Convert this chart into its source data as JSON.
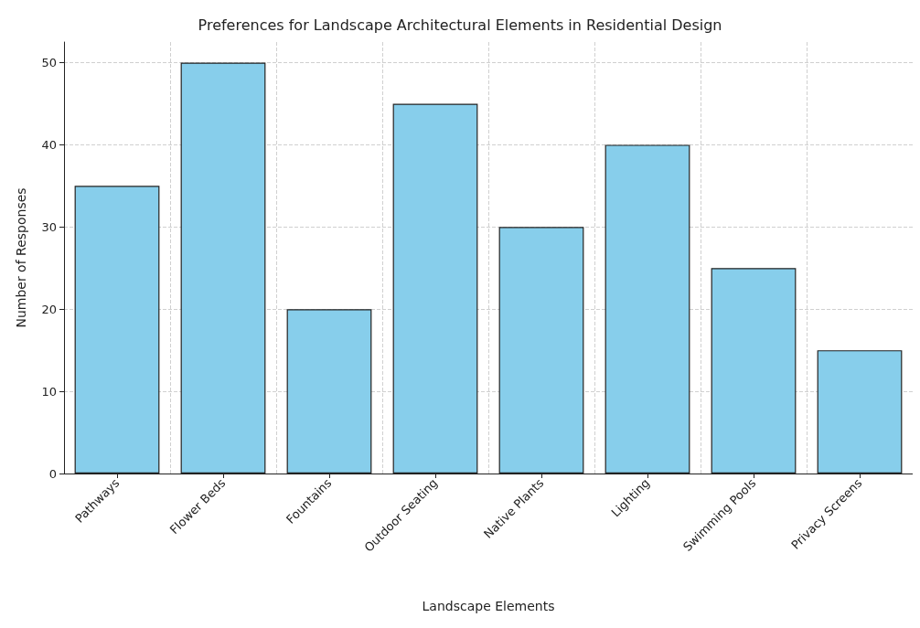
{
  "chart_data": {
    "type": "bar",
    "title": "Preferences for Landscape Architectural Elements in Residential Design",
    "xlabel": "Landscape Elements",
    "ylabel": "Number of Responses",
    "categories": [
      "Pathways",
      "Flower Beds",
      "Fountains",
      "Outdoor Seating",
      "Native Plants",
      "Lighting",
      "Swimming Pools",
      "Privacy Screens"
    ],
    "values": [
      35,
      50,
      20,
      45,
      30,
      40,
      25,
      15
    ],
    "color": "#87ceeb",
    "ylim": [
      0,
      52.5
    ],
    "yticks": [
      0,
      10,
      20,
      30,
      40,
      50
    ],
    "grid": true
  }
}
